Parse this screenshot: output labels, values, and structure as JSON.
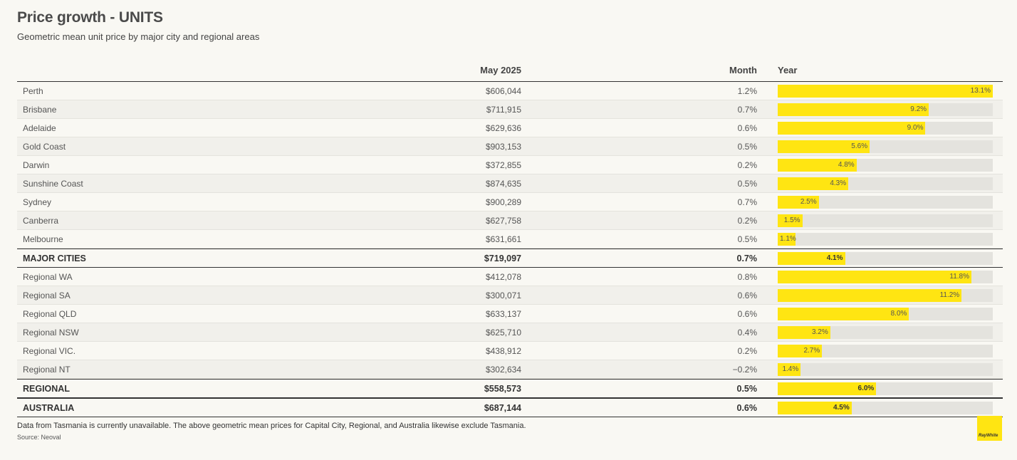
{
  "header": {
    "title": "Price growth  - UNITS",
    "subtitle": "Geometric mean unit price by major city and regional areas"
  },
  "columns": {
    "price": "May 2025",
    "month": "Month",
    "year": "Year"
  },
  "colors": {
    "bar": "#ffe512",
    "track": "#e4e3de",
    "background": "#f9f8f3"
  },
  "chart_data": {
    "type": "table",
    "year_scale_max": 13.1,
    "rows": [
      {
        "name": "Perth",
        "price": "$606,044",
        "month": "1.2%",
        "year": 13.1,
        "year_label": "13.1%",
        "kind": "city"
      },
      {
        "name": "Brisbane",
        "price": "$711,915",
        "month": "0.7%",
        "year": 9.2,
        "year_label": "9.2%",
        "kind": "city"
      },
      {
        "name": "Adelaide",
        "price": "$629,636",
        "month": "0.6%",
        "year": 9.0,
        "year_label": "9.0%",
        "kind": "city"
      },
      {
        "name": "Gold Coast",
        "price": "$903,153",
        "month": "0.5%",
        "year": 5.6,
        "year_label": "5.6%",
        "kind": "city"
      },
      {
        "name": "Darwin",
        "price": "$372,855",
        "month": "0.2%",
        "year": 4.8,
        "year_label": "4.8%",
        "kind": "city"
      },
      {
        "name": "Sunshine Coast",
        "price": "$874,635",
        "month": "0.5%",
        "year": 4.3,
        "year_label": "4.3%",
        "kind": "city"
      },
      {
        "name": "Sydney",
        "price": "$900,289",
        "month": "0.7%",
        "year": 2.5,
        "year_label": "2.5%",
        "kind": "city"
      },
      {
        "name": "Canberra",
        "price": "$627,758",
        "month": "0.2%",
        "year": 1.5,
        "year_label": "1.5%",
        "kind": "city"
      },
      {
        "name": "Melbourne",
        "price": "$631,661",
        "month": "0.5%",
        "year": 1.1,
        "year_label": "1.1%",
        "kind": "city"
      },
      {
        "name": "MAJOR CITIES",
        "price": "$719,097",
        "month": "0.7%",
        "year": 4.1,
        "year_label": "4.1%",
        "kind": "total"
      },
      {
        "name": "Regional WA",
        "price": "$412,078",
        "month": "0.8%",
        "year": 11.8,
        "year_label": "11.8%",
        "kind": "regional"
      },
      {
        "name": "Regional SA",
        "price": "$300,071",
        "month": "0.6%",
        "year": 11.2,
        "year_label": "11.2%",
        "kind": "regional"
      },
      {
        "name": "Regional QLD",
        "price": "$633,137",
        "month": "0.6%",
        "year": 8.0,
        "year_label": "8.0%",
        "kind": "regional"
      },
      {
        "name": "Regional NSW",
        "price": "$625,710",
        "month": "0.4%",
        "year": 3.2,
        "year_label": "3.2%",
        "kind": "regional"
      },
      {
        "name": "Regional VIC.",
        "price": "$438,912",
        "month": "0.2%",
        "year": 2.7,
        "year_label": "2.7%",
        "kind": "regional"
      },
      {
        "name": "Regional NT",
        "price": "$302,634",
        "month": "−0.2%",
        "year": 1.4,
        "year_label": "1.4%",
        "kind": "regional"
      },
      {
        "name": "REGIONAL",
        "price": "$558,573",
        "month": "0.5%",
        "year": 6.0,
        "year_label": "6.0%",
        "kind": "total"
      },
      {
        "name": "AUSTRALIA",
        "price": "$687,144",
        "month": "0.6%",
        "year": 4.5,
        "year_label": "4.5%",
        "kind": "total"
      }
    ]
  },
  "footer": {
    "note": "Data from Tasmania is currently unavailable. The above geometric mean prices for Capital City, Regional, and Australia likewise exclude Tasmania.",
    "source": "Source: Neoval",
    "logo_text": "RayWhite"
  }
}
